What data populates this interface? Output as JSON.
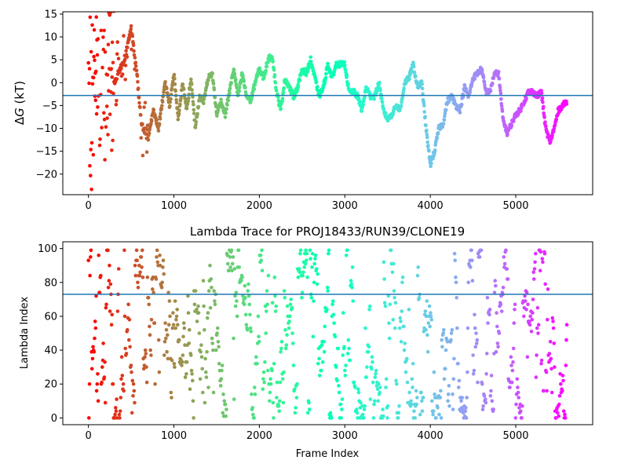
{
  "chart_data": [
    {
      "type": "scatter",
      "title": "",
      "xlabel": "",
      "ylabel": "ΔG (kT)",
      "ylabel_italic_part": "G",
      "xlim": [
        -300,
        5900
      ],
      "ylim": [
        -24.5,
        15.5
      ],
      "xticks": [
        0,
        1000,
        2000,
        3000,
        4000,
        5000
      ],
      "xtick_labels": [
        "0",
        "1000",
        "2000",
        "3000",
        "4000",
        "5000"
      ],
      "yticks": [
        15,
        10,
        5,
        0,
        -5,
        -10,
        -15,
        -20
      ],
      "ytick_labels": [
        "15",
        "10",
        "5",
        "0",
        "−5",
        "−10",
        "−15",
        "−20"
      ],
      "reference_line": {
        "y": -2.8,
        "color": "#1f77b4"
      },
      "colormap": "rainbow (by frame index, reversed: red at 0, violet at end)",
      "n_frames": 5600,
      "trace_keypoints": {
        "x": [
          300,
          420,
          500,
          560,
          620,
          700,
          760,
          820,
          900,
          950,
          1000,
          1050,
          1100,
          1150,
          1200,
          1250,
          1300,
          1350,
          1400,
          1450,
          1500,
          1550,
          1600,
          1650,
          1700,
          1750,
          1800,
          1850,
          1900,
          1950,
          2000,
          2050,
          2100,
          2150,
          2200,
          2250,
          2300,
          2350,
          2400,
          2450,
          2500,
          2550,
          2600,
          2650,
          2700,
          2750,
          2800,
          2850,
          2900,
          2950,
          3000,
          3050,
          3100,
          3150,
          3200,
          3250,
          3300,
          3350,
          3400,
          3450,
          3500,
          3550,
          3600,
          3650,
          3700,
          3750,
          3800,
          3850,
          3900,
          3950,
          4000,
          4050,
          4100,
          4150,
          4200,
          4250,
          4300,
          4350,
          4400,
          4450,
          4500,
          4550,
          4600,
          4650,
          4700,
          4750,
          4800,
          4850,
          4900,
          4950,
          5000,
          5050,
          5100,
          5150,
          5200,
          5250,
          5300,
          5350,
          5400,
          5450,
          5500,
          5550,
          5600
        ],
        "y": [
          0,
          5,
          12,
          3,
          -9,
          -12,
          -6,
          -10,
          0,
          -5,
          2,
          -8,
          0,
          -6,
          1,
          -10,
          -3,
          -4,
          1,
          2,
          -7,
          -4,
          -7,
          -2,
          3,
          -3,
          2,
          -3,
          -4,
          0,
          3,
          1,
          5,
          6,
          -2,
          -6,
          1,
          -1,
          -3,
          -1,
          3,
          2,
          5,
          1,
          -3,
          -1,
          4,
          1,
          4,
          4,
          4,
          -2,
          -2,
          -3,
          -6,
          -1,
          -3,
          -3,
          0,
          -6,
          -8,
          -7,
          -5,
          -6,
          0,
          1,
          4,
          -1,
          0,
          -10,
          -18,
          -15,
          -10,
          -9,
          -4,
          -3,
          -5,
          -6,
          -1,
          -3,
          1,
          2,
          3,
          -2,
          -2,
          2,
          2,
          -8,
          -11,
          -9,
          -7,
          -6,
          -4,
          -2,
          -2,
          -3,
          -2,
          -10,
          -13,
          -10,
          -6,
          -5,
          -4
        ]
      }
    },
    {
      "type": "scatter",
      "title": "Lambda Trace for PROJ18433/RUN39/CLONE19",
      "xlabel": "Frame Index",
      "ylabel": "Lambda Index",
      "xlim": [
        -300,
        5900
      ],
      "ylim": [
        -4,
        104
      ],
      "xticks": [
        0,
        1000,
        2000,
        3000,
        4000,
        5000
      ],
      "xtick_labels": [
        "0",
        "1000",
        "2000",
        "3000",
        "4000",
        "5000"
      ],
      "yticks": [
        0,
        20,
        40,
        60,
        80,
        100
      ],
      "ytick_labels": [
        "0",
        "20",
        "40",
        "60",
        "80",
        "100"
      ],
      "reference_line": {
        "y": 73,
        "color": "#1f77b4"
      },
      "colormap": "rainbow (by frame index, reversed: red at 0, violet at end)",
      "n_frames": 5600,
      "value_range": [
        0,
        99
      ]
    }
  ]
}
